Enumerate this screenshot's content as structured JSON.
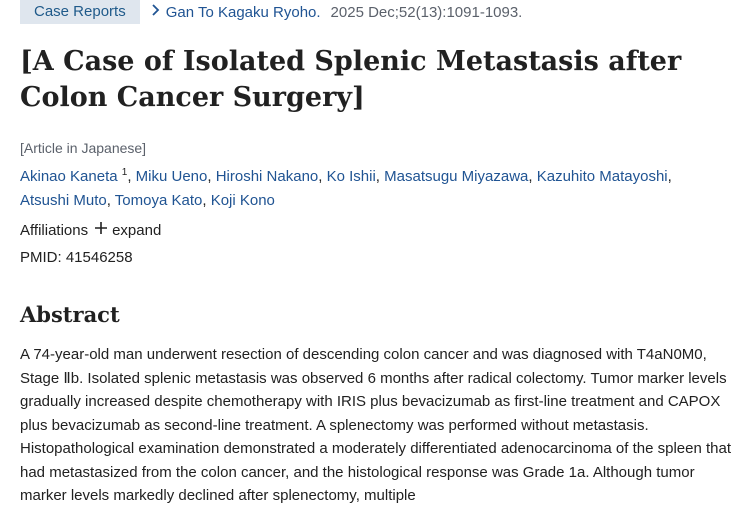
{
  "header": {
    "badge": "Case Reports",
    "journal": "Gan To Kagaku Ryoho.",
    "citation": "2025 Dec;52(13):1091-1093."
  },
  "article": {
    "title": "[A Case of Isolated Splenic Metastasis after Colon Cancer Surgery]",
    "language_note": "[Article in Japanese]",
    "authors": [
      {
        "name": "Akinao Kaneta",
        "sup": "1"
      },
      {
        "name": "Miku Ueno"
      },
      {
        "name": "Hiroshi Nakano"
      },
      {
        "name": "Ko Ishii"
      },
      {
        "name": "Masatsugu Miyazawa"
      },
      {
        "name": "Kazuhito Matayoshi"
      },
      {
        "name": "Atsushi Muto"
      },
      {
        "name": "Tomoya Kato"
      },
      {
        "name": "Koji Kono"
      }
    ],
    "affiliations_label": "Affiliations",
    "expand_label": "expand",
    "pmid": "PMID: 41546258"
  },
  "abstract": {
    "heading": "Abstract",
    "text": "A 74-year-old man underwent resection of descending colon cancer and was diagnosed with T4aN0M0, Stage Ⅱb. Isolated splenic metastasis was observed 6 months after radical colectomy. Tumor marker levels gradually increased despite chemotherapy with IRIS plus bevacizumab as first-line treatment and CAPOX plus bevacizumab as second-line treatment. A splenectomy was performed without metastasis. Histopathological examination demonstrated a moderately differentiated adenocarcinoma of the spleen that had metastasized from the colon cancer, and the histological response was Grade 1a. Although tumor marker levels markedly declined after splenectomy, multiple"
  },
  "colors": {
    "link": "#205493",
    "badge_bg": "#dfe6ee"
  }
}
